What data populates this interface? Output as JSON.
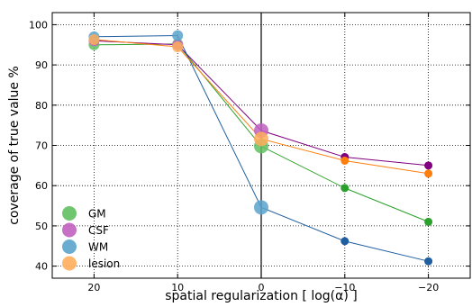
{
  "chart_data": {
    "type": "line",
    "xlabel": "spatial regularization [ log(α) ]",
    "ylabel": "coverage of true value %",
    "x": [
      20,
      10,
      0,
      -10,
      -20
    ],
    "xlim": [
      25,
      -25
    ],
    "ylim": [
      37,
      103
    ],
    "xticks": [
      "20",
      "10",
      "0",
      "−10",
      "−20"
    ],
    "yticks": [
      40,
      50,
      60,
      70,
      80,
      90,
      100
    ],
    "grid": true,
    "vertical_line_at": 0,
    "legend_position": "bottom-left",
    "series": [
      {
        "name": "GM",
        "color": "#2ca02c",
        "light_color": "#60c060",
        "values": [
          95.0,
          95.2,
          69.8,
          59.4,
          51.0
        ]
      },
      {
        "name": "CSF",
        "color": "#800080",
        "light_color": "#c060c0",
        "values": [
          96.0,
          95.0,
          73.7,
          67.1,
          65.0
        ]
      },
      {
        "name": "WM",
        "color": "#1f5fa0",
        "light_color": "#5ba3cc",
        "values": [
          97.0,
          97.3,
          54.6,
          46.2,
          41.2
        ]
      },
      {
        "name": "lesion",
        "color": "#ff7f0e",
        "light_color": "#ffad5c",
        "values": [
          96.3,
          94.5,
          71.6,
          66.2,
          63.0
        ]
      }
    ],
    "marker_sizes": [
      7,
      7,
      8,
      5,
      5
    ],
    "large_marker_sizes": [
      7,
      7,
      9,
      5,
      5
    ]
  }
}
